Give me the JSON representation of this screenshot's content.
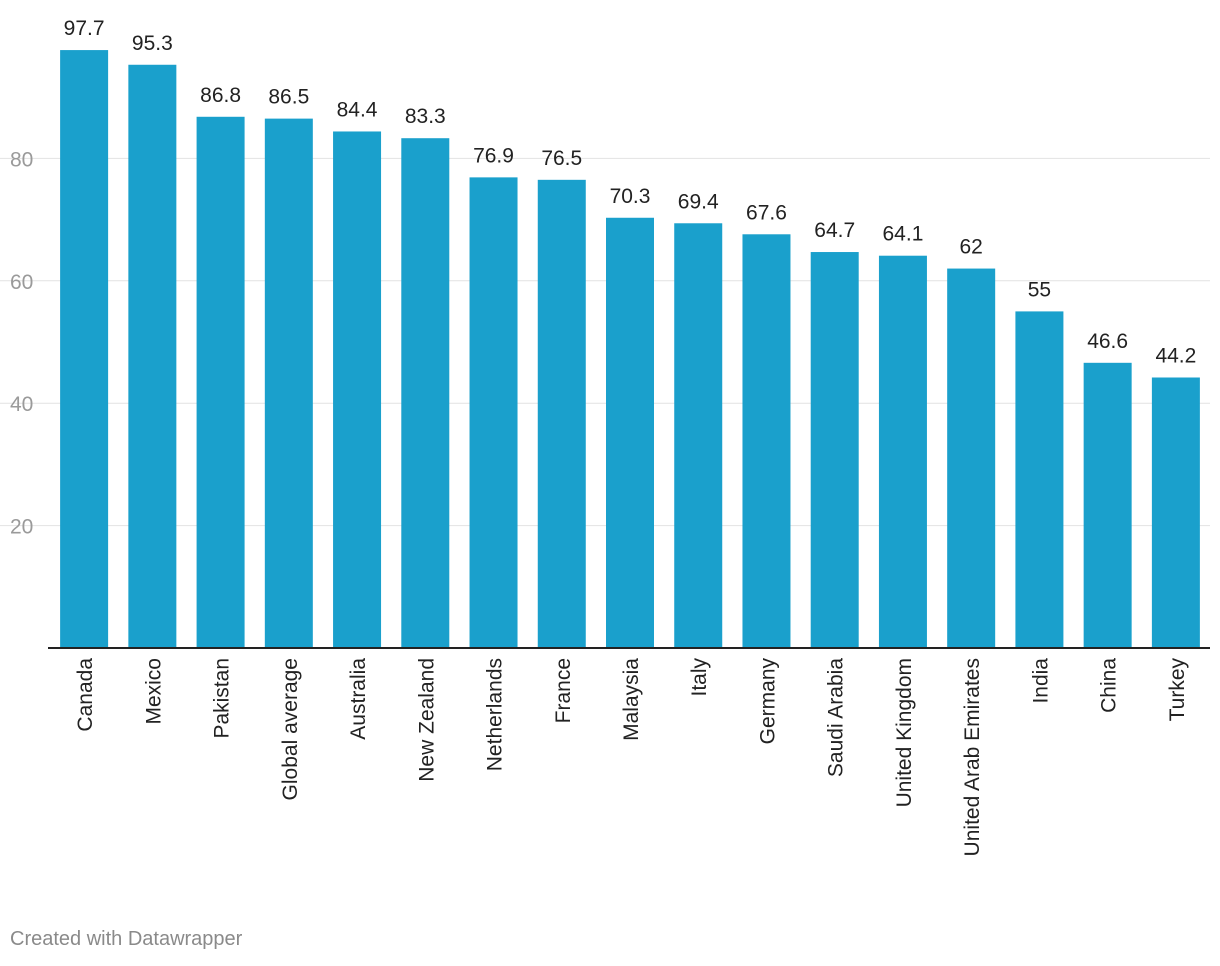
{
  "chart_data": {
    "type": "bar",
    "categories": [
      "Canada",
      "Mexico",
      "Pakistan",
      "Global average",
      "Australia",
      "New Zealand",
      "Netherlands",
      "France",
      "Malaysia",
      "Italy",
      "Germany",
      "Saudi Arabia",
      "United Kingdom",
      "United Arab Emirates",
      "India",
      "China",
      "Turkey"
    ],
    "values": [
      97.7,
      95.3,
      86.8,
      86.5,
      84.4,
      83.3,
      76.9,
      76.5,
      70.3,
      69.4,
      67.6,
      64.7,
      64.1,
      62,
      55,
      46.6,
      44.2
    ],
    "value_labels": [
      "97.7",
      "95.3",
      "86.8",
      "86.5",
      "84.4",
      "83.3",
      "76.9",
      "76.5",
      "70.3",
      "69.4",
      "67.6",
      "64.7",
      "64.1",
      "62",
      "55",
      "46.6",
      "44.2"
    ],
    "yticks": [
      20,
      40,
      60,
      80
    ],
    "ylim": [
      0,
      100
    ],
    "grid": true,
    "bar_color": "#1aa0cc",
    "title": "",
    "xlabel": "",
    "ylabel": ""
  },
  "footer": {
    "credit": "Created with Datawrapper"
  }
}
